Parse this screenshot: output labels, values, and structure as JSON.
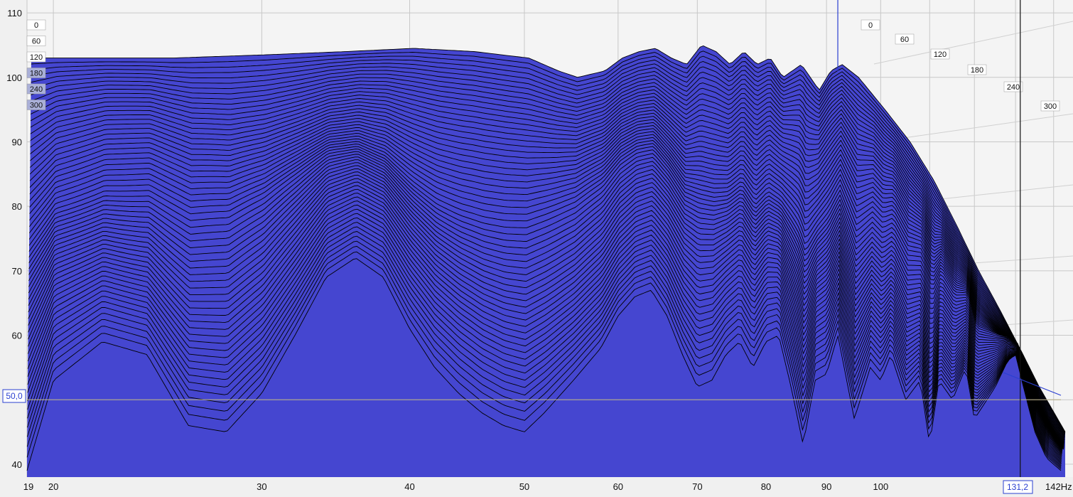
{
  "chart_data": {
    "type": "area",
    "subtype": "waterfall",
    "title": "",
    "xlabel": "",
    "ylabel": "",
    "x_scale": "log",
    "xlim": [
      19,
      142
    ],
    "ylim": [
      38,
      112
    ],
    "y_ticks": [
      "40",
      "50",
      "60",
      "70",
      "80",
      "90",
      "100",
      "110"
    ],
    "x_ticks": [
      "19",
      "20",
      "30",
      "40",
      "50",
      "60",
      "70",
      "80",
      "90",
      "100"
    ],
    "x_unit": "142Hz",
    "z_ticks_left": [
      "0",
      "60",
      "120",
      "180",
      "240",
      "300"
    ],
    "z_ticks_right": [
      "0",
      "60",
      "120",
      "180",
      "240",
      "300"
    ],
    "slice_count": 60,
    "fill_color": "#4546d0",
    "line_color": "#000000",
    "front_slice": {
      "x": [
        19,
        20,
        22,
        24,
        26,
        28,
        30,
        32,
        34,
        36,
        38,
        40,
        42,
        44,
        46,
        48,
        50,
        52,
        55,
        58,
        60,
        62,
        64,
        66,
        68,
        70,
        72,
        74,
        76,
        78,
        80,
        82,
        84,
        86,
        88,
        90,
        92,
        95,
        98,
        100,
        102,
        105,
        108,
        110,
        112,
        115,
        118,
        120,
        125,
        128,
        130,
        132,
        135,
        138,
        142
      ],
      "y": [
        39,
        53,
        59,
        57,
        46,
        45,
        51,
        60,
        69,
        72,
        69,
        61,
        55,
        51,
        48,
        46,
        45,
        48,
        53,
        58,
        63,
        66,
        67,
        63,
        57,
        52,
        53,
        57,
        59,
        55,
        59,
        60,
        52,
        43,
        53,
        54,
        60,
        47,
        55,
        53,
        57,
        50,
        53,
        43,
        53,
        50,
        55,
        47,
        52,
        56,
        57,
        52,
        45,
        41,
        39
      ]
    },
    "back_slice": {
      "x": [
        19,
        20,
        25,
        30,
        35,
        40,
        45,
        50,
        53,
        55,
        58,
        60,
        62,
        64,
        66,
        68,
        70,
        72,
        74,
        76,
        78,
        80,
        82,
        85,
        88,
        90,
        92,
        95,
        100,
        105,
        110,
        115,
        120,
        125,
        130,
        135,
        142
      ],
      "y": [
        103,
        103,
        103,
        103.5,
        104,
        104.5,
        104,
        103,
        101,
        100,
        101,
        103,
        104,
        104.5,
        103,
        102,
        105,
        104,
        102,
        104,
        102,
        103,
        100,
        102,
        98,
        101,
        102,
        100,
        95,
        90,
        84,
        77,
        70,
        64,
        58,
        52,
        45
      ]
    }
  },
  "cursor": {
    "y_readout": "50,0",
    "x_readout": "131,2",
    "y_value": 50,
    "x_value": 131.2
  }
}
